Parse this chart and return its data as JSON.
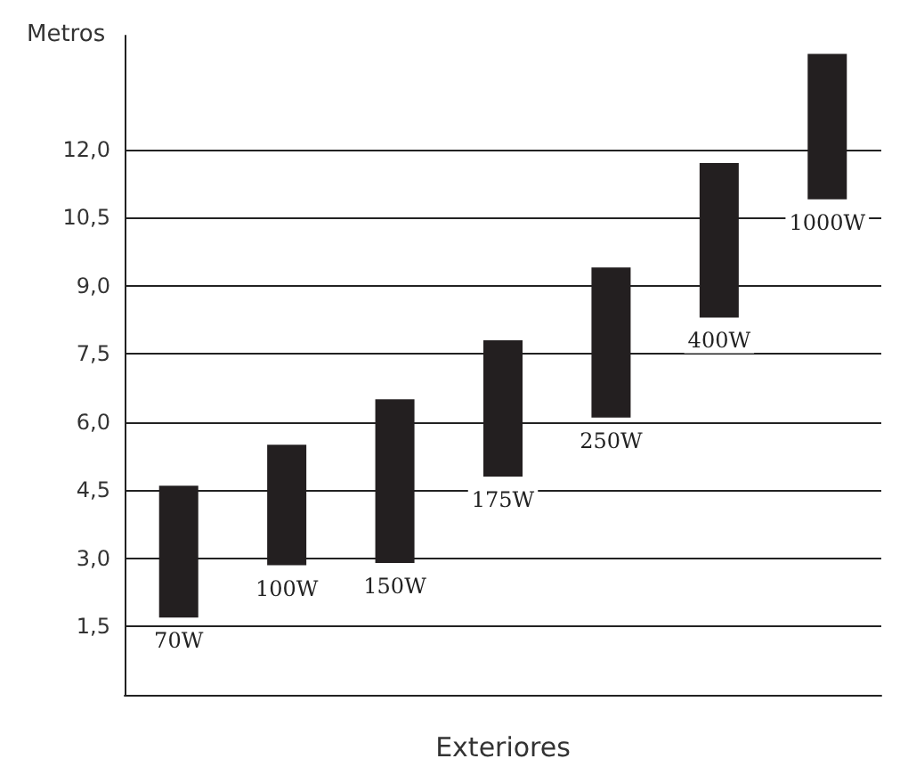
{
  "chart_data": {
    "type": "bar",
    "ylabel": "Metros",
    "xlabel": "Exteriores",
    "categories": [
      "70W",
      "100W",
      "150W",
      "175W",
      "250W",
      "400W",
      "1000W"
    ],
    "base": [
      1.7,
      2.85,
      2.9,
      4.8,
      6.1,
      8.3,
      10.9
    ],
    "values": [
      2.9,
      2.65,
      3.6,
      3.0,
      3.3,
      3.4,
      3.2
    ],
    "color": "#231f20",
    "ylim": [
      0,
      14.5
    ],
    "yticks": [
      {
        "value": 1.5,
        "label": "1,5"
      },
      {
        "value": 3,
        "label": "3,0"
      },
      {
        "value": 4.5,
        "label": "4,5"
      },
      {
        "value": 6,
        "label": "6,0"
      },
      {
        "value": 7.5,
        "label": "7,5"
      },
      {
        "value": 9,
        "label": "9,0"
      },
      {
        "value": 10.5,
        "label": "10,5"
      },
      {
        "value": 12,
        "label": "12,0"
      }
    ],
    "grid": "y"
  }
}
